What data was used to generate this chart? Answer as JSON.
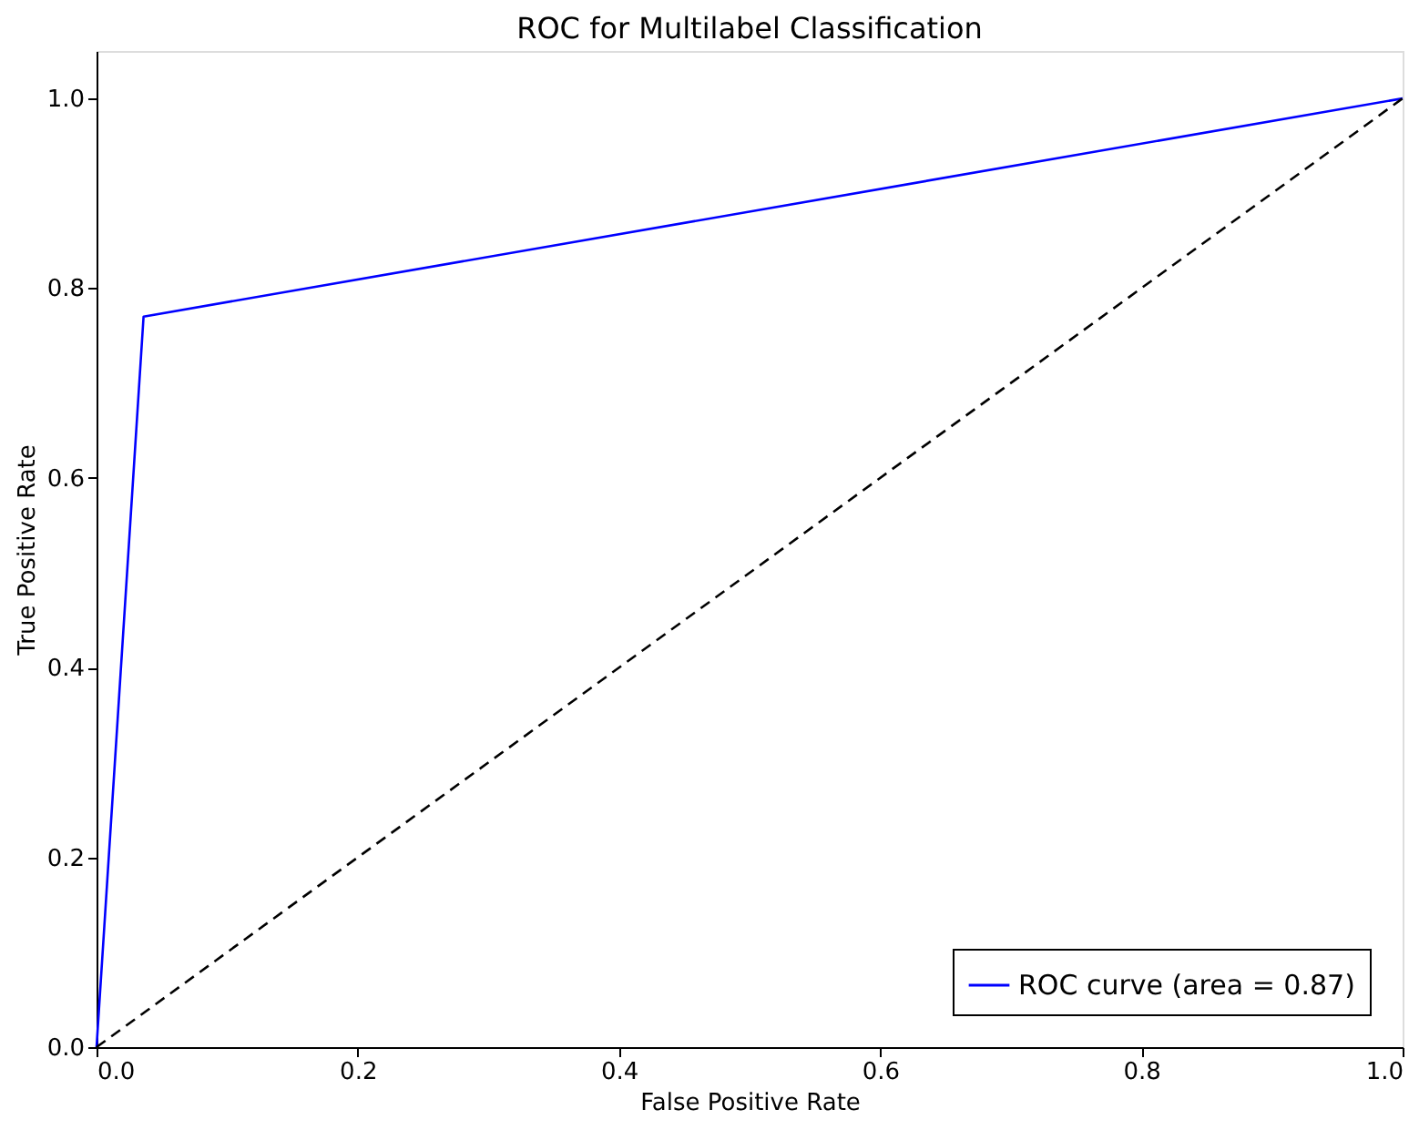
{
  "chart_data": {
    "type": "line",
    "title": "ROC for Multilabel Classification",
    "xlabel": "False Positive Rate",
    "ylabel": "True Positive Rate",
    "series": [
      {
        "name": "ROC curve (area = 0.87)",
        "color": "#0000ff",
        "x": [
          0,
          0.036,
          1
        ],
        "values": [
          0,
          0.77,
          1
        ],
        "line_style": "solid"
      },
      {
        "color": "#000000",
        "x": [
          0,
          1
        ],
        "values": [
          0,
          1
        ],
        "line_style": "dashed"
      }
    ],
    "xlim": [
      0,
      1
    ],
    "ylim": [
      0,
      1.05
    ],
    "xticks": [
      {
        "value": 0,
        "label": "0.0"
      },
      {
        "value": 0.2,
        "label": "0.2"
      },
      {
        "value": 0.4,
        "label": "0.4"
      },
      {
        "value": 0.6,
        "label": "0.6"
      },
      {
        "value": 0.8,
        "label": "0.8"
      },
      {
        "value": 1,
        "label": "1.0"
      }
    ],
    "yticks": [
      {
        "value": 0,
        "label": "0.0"
      },
      {
        "value": 0.2,
        "label": "0.2"
      },
      {
        "value": 0.4,
        "label": "0.4"
      },
      {
        "value": 0.6,
        "label": "0.6"
      },
      {
        "value": 0.8,
        "label": "0.8"
      },
      {
        "value": 1,
        "label": "1.0"
      }
    ],
    "grid": false,
    "legend": "bottom right",
    "marker": "none"
  }
}
